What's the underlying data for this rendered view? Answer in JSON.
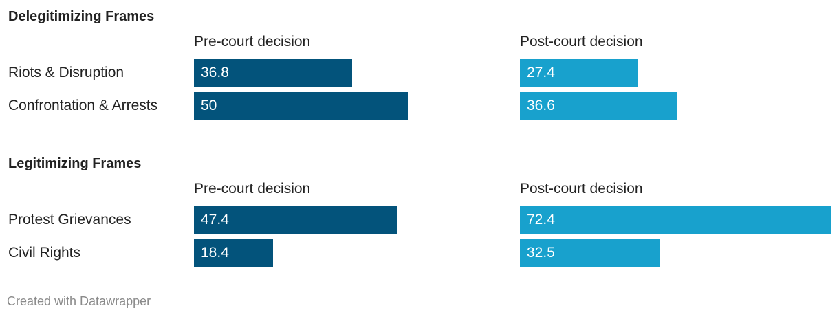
{
  "chart_data": [
    {
      "type": "bar",
      "title": "Delegitimizing Frames",
      "categories": [
        "Riots & Disruption",
        "Confrontation & Arrests"
      ],
      "series": [
        {
          "name": "Pre-court decision",
          "values": [
            36.8,
            50
          ],
          "value_labels": [
            "36.8",
            "50"
          ],
          "color": "#03537b"
        },
        {
          "name": "Post-court decision",
          "values": [
            27.4,
            36.6
          ],
          "value_labels": [
            "27.4",
            "36.6"
          ],
          "color": "#18a1cd"
        }
      ]
    },
    {
      "type": "bar",
      "title": "Legitimizing Frames",
      "categories": [
        "Protest Grievances",
        "Civil Rights"
      ],
      "series": [
        {
          "name": "Pre-court decision",
          "values": [
            47.4,
            18.4
          ],
          "value_labels": [
            "47.4",
            "18.4"
          ],
          "color": "#03537b"
        },
        {
          "name": "Post-court decision",
          "values": [
            72.4,
            32.5
          ],
          "value_labels": [
            "72.4",
            "32.5"
          ],
          "color": "#18a1cd"
        }
      ]
    }
  ],
  "footer": "Created with Datawrapper"
}
